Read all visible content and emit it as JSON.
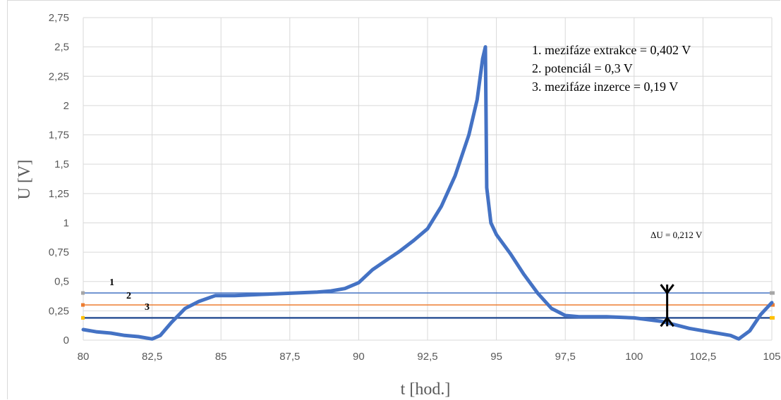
{
  "chart_data": {
    "type": "line",
    "xlabel": "t [hod.]",
    "ylabel": "U [V]",
    "xlim": [
      80,
      105
    ],
    "ylim": [
      0,
      2.75
    ],
    "x_ticks": [
      "80",
      "82,5",
      "85",
      "87,5",
      "90",
      "92,5",
      "95",
      "97,5",
      "100",
      "102,5",
      "105"
    ],
    "y_ticks": [
      "0",
      "0,25",
      "0,5",
      "0,75",
      "1",
      "1,25",
      "1,5",
      "1,75",
      "2",
      "2,25",
      "2,5",
      "2,75"
    ],
    "grid": true,
    "series": [
      {
        "color": "#4472c4",
        "x": [
          80,
          80.5,
          81,
          81.5,
          82,
          82.5,
          82.8,
          83.2,
          83.7,
          84.2,
          84.8,
          85.5,
          86.5,
          87.5,
          88.5,
          89,
          89.5,
          90,
          90.5,
          91,
          91.5,
          92,
          92.5,
          93,
          93.5,
          94,
          94.3,
          94.5,
          94.6,
          94.65,
          94.8,
          95,
          95.5,
          96,
          96.5,
          97,
          97.5,
          98,
          99,
          100,
          101,
          101.5,
          102,
          102.5,
          103,
          103.5,
          103.8,
          104.2,
          104.6,
          105
        ],
        "y": [
          0.09,
          0.07,
          0.06,
          0.04,
          0.03,
          0.01,
          0.04,
          0.15,
          0.27,
          0.33,
          0.38,
          0.38,
          0.39,
          0.4,
          0.41,
          0.42,
          0.44,
          0.49,
          0.6,
          0.68,
          0.76,
          0.85,
          0.95,
          1.14,
          1.4,
          1.75,
          2.05,
          2.4,
          2.5,
          1.3,
          1.0,
          0.9,
          0.74,
          0.56,
          0.4,
          0.27,
          0.21,
          0.2,
          0.2,
          0.19,
          0.16,
          0.13,
          0.1,
          0.08,
          0.06,
          0.04,
          0.01,
          0.08,
          0.22,
          0.32
        ]
      }
    ],
    "reference_lines": [
      {
        "label": "1",
        "y": 0.402,
        "color": "#4472c4"
      },
      {
        "label": "2",
        "y": 0.3,
        "color": "#ed7d31"
      },
      {
        "label": "3",
        "y": 0.19,
        "color": "#2f5597"
      }
    ],
    "legend": [
      "1. mezifáze extrakce = 0,402 V",
      "2. potenciál = 0,3 V",
      "3. mezifáze inzerce = 0,19 V"
    ],
    "annotation": {
      "text": "ΔU = 0,212 V",
      "x": 101.2,
      "y_top": 0.402,
      "y_bottom": 0.19
    }
  }
}
